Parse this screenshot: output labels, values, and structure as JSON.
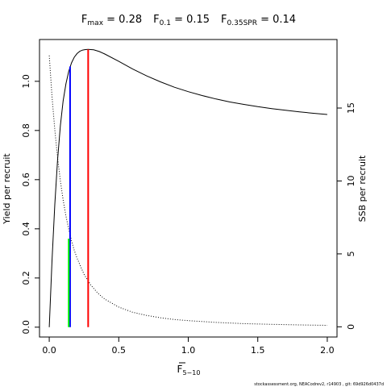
{
  "chart_data": {
    "type": "line",
    "title_parts": [
      {
        "main": "F",
        "sub": "max",
        "rest": " = 0.28"
      },
      {
        "main": "F",
        "sub": "0.1",
        "rest": " = 0.15"
      },
      {
        "main": "F",
        "sub": "0.35SPR",
        "rest": " = 0.14"
      }
    ],
    "xlabel_main": "F",
    "xlabel_sub": "5−10",
    "ylabel_left": "Yield per recruit",
    "ylabel_right": "SSB per recruit",
    "x_ticks": [
      "0.0",
      "0.5",
      "1.0",
      "1.5",
      "2.0"
    ],
    "y_left_ticks": [
      "0.0",
      "0.2",
      "0.4",
      "0.6",
      "0.8",
      "1.0"
    ],
    "y_right_ticks": [
      "0",
      "5",
      "10",
      "15"
    ],
    "xlim": [
      -0.07,
      2.07
    ],
    "ylim_left": [
      -0.04,
      1.17
    ],
    "ylim_right": [
      -0.7,
      19.7
    ],
    "series": [
      {
        "axis": "left",
        "style": "solid",
        "color": "#000000",
        "x": [
          0.0,
          0.02,
          0.04,
          0.06,
          0.08,
          0.1,
          0.12,
          0.14,
          0.16,
          0.18,
          0.2,
          0.22,
          0.24,
          0.26,
          0.28,
          0.32,
          0.36,
          0.4,
          0.5,
          0.6,
          0.7,
          0.8,
          0.9,
          1.0,
          1.1,
          1.2,
          1.3,
          1.4,
          1.5,
          1.6,
          1.7,
          1.8,
          1.9,
          2.0
        ],
        "y": [
          0.0,
          0.27,
          0.5,
          0.68,
          0.82,
          0.92,
          0.99,
          1.04,
          1.075,
          1.098,
          1.113,
          1.122,
          1.127,
          1.129,
          1.13,
          1.128,
          1.121,
          1.111,
          1.081,
          1.05,
          1.022,
          0.998,
          0.976,
          0.958,
          0.942,
          0.928,
          0.916,
          0.906,
          0.897,
          0.889,
          0.882,
          0.876,
          0.87,
          0.865
        ]
      },
      {
        "axis": "right",
        "style": "dotted",
        "color": "#000000",
        "x": [
          0.0,
          0.02,
          0.04,
          0.06,
          0.08,
          0.1,
          0.12,
          0.14,
          0.16,
          0.18,
          0.2,
          0.25,
          0.3,
          0.35,
          0.4,
          0.5,
          0.6,
          0.7,
          0.8,
          0.9,
          1.0,
          1.2,
          1.4,
          1.6,
          1.8,
          2.0
        ],
        "y": [
          18.6,
          15.8,
          13.5,
          11.6,
          10.0,
          8.7,
          7.6,
          6.7,
          5.9,
          5.25,
          4.7,
          3.6,
          2.85,
          2.3,
          1.9,
          1.35,
          1.0,
          0.78,
          0.62,
          0.5,
          0.42,
          0.3,
          0.22,
          0.17,
          0.13,
          0.1
        ]
      }
    ],
    "reference_lines": [
      {
        "name": "Fmax",
        "x": 0.28,
        "y_from": 0.0,
        "y_to": 1.13,
        "color": "#ff0000"
      },
      {
        "name": "F0.1",
        "x": 0.15,
        "y_from": 0.0,
        "y_to": 1.06,
        "color": "#0000ff"
      },
      {
        "name": "F0.35SPR",
        "x": 0.14,
        "y_from": 0.0,
        "y_to": 0.36,
        "color": "#00ff00"
      }
    ]
  },
  "footer": {
    "credit": "stockassessment.org, NEACodrev2, r14903 , git: 69d926d0437d"
  }
}
